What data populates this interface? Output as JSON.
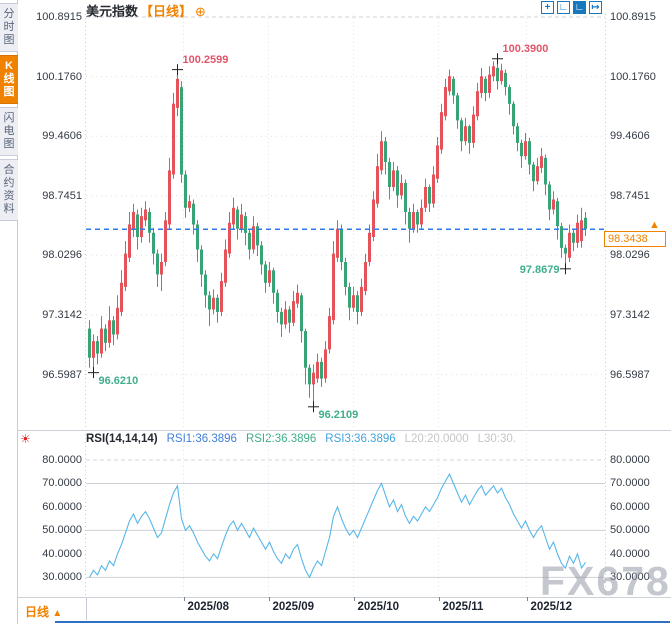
{
  "app": {
    "tabs": [
      {
        "label": "分时图",
        "active": false
      },
      {
        "label": "K线图",
        "active": true
      },
      {
        "label": "闪电图",
        "active": false
      },
      {
        "label": "合约资料",
        "active": false
      }
    ],
    "title": {
      "symbol": "美元指数",
      "period": "【日线】",
      "add_icon": "⊕"
    },
    "toolbar": [
      {
        "name": "crosshair",
        "glyph": "+",
        "filled": false
      },
      {
        "name": "axis-zoom",
        "glyph": "∟",
        "filled": false
      },
      {
        "name": "axis-pan",
        "glyph": "∟",
        "filled": true
      },
      {
        "name": "exit",
        "glyph": "↦",
        "filled": false
      }
    ]
  },
  "price_panel": {
    "current_price": "98.3438",
    "arrow": "▲"
  },
  "rsi_panel": {
    "sun_icon": "☀",
    "title": "RSI(14,14,14)",
    "rsi1": "RSI1:36.3896",
    "rsi2": "RSI2:36.3896",
    "rsi3": "RSI3:36.3896",
    "l20": "L20:20.0000",
    "l30": "L30:30.",
    "colors": {
      "title": "#24292f",
      "rsi1": "#3f7fd6",
      "rsi2": "#3fae85",
      "rsi3": "#44a3dc",
      "l": "#c6c6c6"
    }
  },
  "bottom_bar": {
    "period": "日线",
    "arrow": "▲"
  },
  "watermark": "FX678",
  "chart_data": {
    "type": "candlestick",
    "title": "美元指数 日线",
    "price_ticks": [
      100.8915,
      100.176,
      99.4606,
      98.7451,
      98.0296,
      97.3142,
      96.5987
    ],
    "rsi_ticks": [
      80,
      70,
      60,
      50,
      40,
      30
    ],
    "ylim": [
      96.5987,
      100.8915
    ],
    "rsi_ylim": [
      30,
      80
    ],
    "last_price": 98.3438,
    "x_ticks": [
      {
        "label": "2025/08",
        "index": 23.5
      },
      {
        "label": "2025/09",
        "index": 44.75
      },
      {
        "label": "2025/10",
        "index": 66
      },
      {
        "label": "2025/11",
        "index": 87.25
      },
      {
        "label": "2025/12",
        "index": 109.25
      }
    ],
    "annotations": [
      {
        "index": 1,
        "price": 96.621,
        "label": "96.6210",
        "kind": "low",
        "side": "right"
      },
      {
        "index": 22,
        "price": 100.2599,
        "label": "100.2599",
        "kind": "high",
        "side": "right"
      },
      {
        "index": 56,
        "price": 96.2109,
        "label": "96.2109",
        "kind": "low",
        "side": "right"
      },
      {
        "index": 102,
        "price": 100.39,
        "label": "100.3900",
        "kind": "high",
        "side": "right"
      },
      {
        "index": 119,
        "price": 97.8679,
        "label": "97.8679",
        "kind": "low",
        "side": "left"
      }
    ],
    "colors": {
      "up": "#e5535a",
      "down": "#38a475",
      "rsi_line": "#58b7e8",
      "dash_line": "#2d7bea",
      "annotation_high": "#e25568",
      "annotation_low": "#3fae8c",
      "grid": "#dcdee5",
      "grid_solid": "#cdd0d6",
      "axis_text": "#333a45",
      "accent_orange": "#f08200",
      "toolbar_blue": "#1878be",
      "cross": "#222222"
    },
    "candles": [
      [
        97.15,
        97.25,
        96.68,
        96.8
      ],
      [
        96.8,
        97.08,
        96.621,
        97.0
      ],
      [
        97.0,
        97.06,
        96.72,
        96.85
      ],
      [
        96.85,
        97.3,
        96.8,
        97.15
      ],
      [
        97.15,
        97.2,
        96.88,
        96.98
      ],
      [
        96.98,
        97.42,
        96.92,
        97.25
      ],
      [
        97.25,
        97.3,
        96.95,
        97.08
      ],
      [
        97.08,
        97.55,
        97.02,
        97.4
      ],
      [
        97.35,
        97.85,
        97.3,
        97.7
      ],
      [
        97.65,
        98.2,
        97.6,
        98.05
      ],
      [
        98.0,
        98.55,
        97.95,
        98.4
      ],
      [
        98.35,
        98.65,
        98.25,
        98.55
      ],
      [
        98.52,
        98.58,
        98.1,
        98.25
      ],
      [
        98.25,
        98.6,
        98.18,
        98.5
      ],
      [
        98.45,
        98.68,
        98.38,
        98.58
      ],
      [
        98.55,
        98.6,
        98.18,
        98.3
      ],
      [
        98.3,
        98.36,
        97.92,
        98.05
      ],
      [
        98.05,
        98.1,
        97.65,
        97.8
      ],
      [
        97.8,
        98.05,
        97.6,
        97.95
      ],
      [
        97.95,
        98.55,
        97.9,
        98.45
      ],
      [
        98.4,
        99.2,
        98.35,
        99.05
      ],
      [
        99.0,
        99.98,
        98.95,
        99.85
      ],
      [
        99.8,
        100.2599,
        99.7,
        100.15
      ],
      [
        100.05,
        100.12,
        98.9,
        99.0
      ],
      [
        99.0,
        99.05,
        98.48,
        98.6
      ],
      [
        98.6,
        98.75,
        98.55,
        98.68
      ],
      [
        98.65,
        98.7,
        98.28,
        98.4
      ],
      [
        98.4,
        98.45,
        97.95,
        98.1
      ],
      [
        98.1,
        98.15,
        97.65,
        97.8
      ],
      [
        97.8,
        97.85,
        97.4,
        97.55
      ],
      [
        97.55,
        97.6,
        97.18,
        97.38
      ],
      [
        97.38,
        97.62,
        97.32,
        97.52
      ],
      [
        97.52,
        97.56,
        97.22,
        97.35
      ],
      [
        97.35,
        97.82,
        97.3,
        97.72
      ],
      [
        97.7,
        98.22,
        97.65,
        98.1
      ],
      [
        98.05,
        98.55,
        98.0,
        98.42
      ],
      [
        98.4,
        98.72,
        98.35,
        98.6
      ],
      [
        98.58,
        98.62,
        98.22,
        98.35
      ],
      [
        98.35,
        98.65,
        98.3,
        98.52
      ],
      [
        98.5,
        98.55,
        98.15,
        98.3
      ],
      [
        98.3,
        98.34,
        97.98,
        98.1
      ],
      [
        98.1,
        98.5,
        98.05,
        98.38
      ],
      [
        98.38,
        98.42,
        98.02,
        98.15
      ],
      [
        98.15,
        98.2,
        97.8,
        97.92
      ],
      [
        97.92,
        97.96,
        97.58,
        97.7
      ],
      [
        97.7,
        97.95,
        97.65,
        97.85
      ],
      [
        97.85,
        97.88,
        97.45,
        97.58
      ],
      [
        97.58,
        97.62,
        97.22,
        97.35
      ],
      [
        97.35,
        97.4,
        97.05,
        97.2
      ],
      [
        97.2,
        97.48,
        97.15,
        97.38
      ],
      [
        97.38,
        97.42,
        97.1,
        97.22
      ],
      [
        97.22,
        97.6,
        97.18,
        97.48
      ],
      [
        97.45,
        97.68,
        97.4,
        97.58
      ],
      [
        97.55,
        97.58,
        96.98,
        97.12
      ],
      [
        97.12,
        97.15,
        96.48,
        96.68
      ],
      [
        96.68,
        96.72,
        96.32,
        96.48
      ],
      [
        96.48,
        96.72,
        96.2109,
        96.62
      ],
      [
        96.55,
        96.85,
        96.5,
        96.75
      ],
      [
        96.75,
        96.8,
        96.45,
        96.55
      ],
      [
        96.55,
        97.0,
        96.5,
        96.9
      ],
      [
        96.9,
        97.4,
        96.85,
        97.3
      ],
      [
        97.25,
        98.2,
        97.2,
        98.05
      ],
      [
        98.0,
        98.45,
        97.95,
        98.35
      ],
      [
        98.35,
        98.4,
        97.85,
        97.95
      ],
      [
        97.95,
        98.0,
        97.55,
        97.65
      ],
      [
        97.65,
        97.7,
        97.25,
        97.4
      ],
      [
        97.4,
        97.65,
        97.35,
        97.55
      ],
      [
        97.55,
        97.6,
        97.2,
        97.35
      ],
      [
        97.35,
        97.75,
        97.3,
        97.65
      ],
      [
        97.6,
        98.05,
        97.55,
        97.95
      ],
      [
        97.95,
        98.4,
        97.9,
        98.3
      ],
      [
        98.25,
        98.8,
        98.2,
        98.7
      ],
      [
        98.65,
        99.25,
        98.6,
        99.1
      ],
      [
        99.05,
        99.52,
        99.0,
        99.4
      ],
      [
        99.4,
        99.45,
        99.0,
        99.15
      ],
      [
        99.15,
        99.2,
        98.7,
        98.85
      ],
      [
        98.85,
        99.15,
        98.8,
        99.05
      ],
      [
        99.05,
        99.1,
        98.6,
        98.75
      ],
      [
        98.75,
        99.0,
        98.7,
        98.9
      ],
      [
        98.9,
        98.94,
        98.4,
        98.55
      ],
      [
        98.55,
        98.6,
        98.18,
        98.35
      ],
      [
        98.35,
        98.65,
        98.3,
        98.55
      ],
      [
        98.55,
        98.58,
        98.3,
        98.4
      ],
      [
        98.4,
        98.7,
        98.35,
        98.6
      ],
      [
        98.6,
        98.95,
        98.55,
        98.85
      ],
      [
        98.85,
        98.88,
        98.55,
        98.65
      ],
      [
        98.65,
        99.1,
        98.6,
        99.0
      ],
      [
        98.95,
        99.45,
        98.9,
        99.35
      ],
      [
        99.3,
        99.85,
        99.25,
        99.75
      ],
      [
        99.7,
        100.15,
        99.65,
        100.05
      ],
      [
        100.0,
        100.26,
        99.95,
        100.18
      ],
      [
        100.15,
        100.18,
        99.85,
        99.95
      ],
      [
        99.95,
        99.98,
        99.55,
        99.65
      ],
      [
        99.65,
        99.68,
        99.28,
        99.4
      ],
      [
        99.4,
        99.68,
        99.35,
        99.58
      ],
      [
        99.58,
        99.6,
        99.25,
        99.38
      ],
      [
        99.38,
        99.82,
        99.32,
        99.72
      ],
      [
        99.7,
        100.1,
        99.65,
        100.0
      ],
      [
        99.98,
        100.28,
        99.92,
        100.18
      ],
      [
        100.15,
        100.18,
        99.88,
        99.98
      ],
      [
        99.98,
        100.3,
        99.92,
        100.2
      ],
      [
        100.18,
        100.36,
        100.12,
        100.3
      ],
      [
        100.28,
        100.39,
        100.02,
        100.12
      ],
      [
        100.12,
        100.33,
        100.08,
        100.25
      ],
      [
        100.22,
        100.26,
        99.95,
        100.05
      ],
      [
        100.05,
        100.08,
        99.72,
        99.85
      ],
      [
        99.85,
        99.88,
        99.48,
        99.58
      ],
      [
        99.58,
        99.62,
        99.28,
        99.38
      ],
      [
        99.38,
        99.42,
        99.08,
        99.22
      ],
      [
        99.22,
        99.5,
        99.18,
        99.4
      ],
      [
        99.4,
        99.44,
        99.0,
        99.12
      ],
      [
        99.12,
        99.15,
        98.8,
        98.92
      ],
      [
        98.92,
        99.2,
        98.88,
        99.1
      ],
      [
        99.08,
        99.32,
        99.02,
        99.22
      ],
      [
        99.2,
        99.24,
        98.75,
        98.88
      ],
      [
        98.88,
        98.92,
        98.45,
        98.58
      ],
      [
        98.58,
        98.8,
        98.52,
        98.7
      ],
      [
        98.68,
        98.72,
        98.22,
        98.38
      ],
      [
        98.38,
        98.42,
        98.0,
        98.12
      ],
      [
        98.12,
        98.16,
        97.8679,
        98.05
      ],
      [
        98.0,
        98.4,
        97.95,
        98.3
      ],
      [
        98.3,
        98.34,
        98.08,
        98.18
      ],
      [
        98.18,
        98.52,
        98.12,
        98.42
      ],
      [
        98.2,
        98.6,
        98.12,
        98.45
      ],
      [
        98.48,
        98.55,
        98.26,
        98.3438
      ]
    ],
    "rsi": [
      30,
      33,
      31,
      35,
      33,
      37,
      35,
      40,
      44,
      49,
      54,
      57,
      53,
      56,
      58,
      55,
      51,
      47,
      49,
      55,
      61,
      66,
      69,
      55,
      50,
      52,
      49,
      45,
      42,
      39,
      37,
      40,
      38,
      43,
      48,
      52,
      54,
      50,
      53,
      50,
      47,
      51,
      48,
      45,
      42,
      45,
      41,
      38,
      36,
      40,
      38,
      42,
      44,
      38,
      33,
      30,
      34,
      37,
      35,
      41,
      47,
      56,
      60,
      55,
      51,
      48,
      50,
      47,
      51,
      55,
      59,
      63,
      67,
      70,
      65,
      60,
      63,
      58,
      61,
      56,
      53,
      56,
      54,
      57,
      60,
      58,
      61,
      64,
      68,
      71,
      74,
      70,
      66,
      62,
      65,
      61,
      64,
      67,
      69,
      65,
      67,
      69,
      66,
      68,
      64,
      61,
      57,
      54,
      51,
      54,
      50,
      47,
      50,
      52,
      47,
      42,
      45,
      40,
      36,
      34,
      39,
      36,
      40,
      34,
      36.39
    ]
  }
}
